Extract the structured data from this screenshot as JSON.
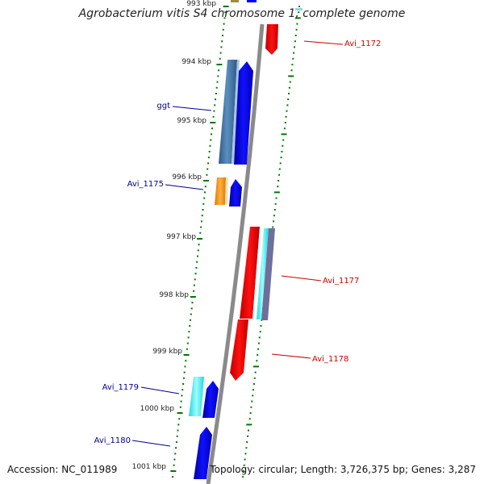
{
  "title": "Agrobacterium vitis S4 chromosome 1, complete genome",
  "accession": "Accession: NC_011989",
  "topology": "Topology: circular; Length: 3,726,375 bp; Genes: 3,287",
  "colors": {
    "backbone": "#808080",
    "forward_gene": "#0000ff",
    "reverse_gene": "#ff0000",
    "forward_label": "#00008b",
    "reverse_label": "#cc0000",
    "tick": "#007700"
  },
  "kbp_labels": [
    "993 kbp",
    "994 kbp",
    "995 kbp",
    "996 kbp",
    "997 kbp",
    "998 kbp",
    "999 kbp",
    "1000 kbp",
    "1001 kbp"
  ],
  "gene_labels": [
    {
      "name": "Avi_1172",
      "strand": "reverse"
    },
    {
      "name": "ggt",
      "strand": "forward"
    },
    {
      "name": "Avi_1175",
      "strand": "forward"
    },
    {
      "name": "Avi_1177",
      "strand": "reverse"
    },
    {
      "name": "Avi_1178",
      "strand": "reverse"
    },
    {
      "name": "Avi_1179",
      "strand": "forward"
    },
    {
      "name": "Avi_1180",
      "strand": "forward"
    }
  ]
}
